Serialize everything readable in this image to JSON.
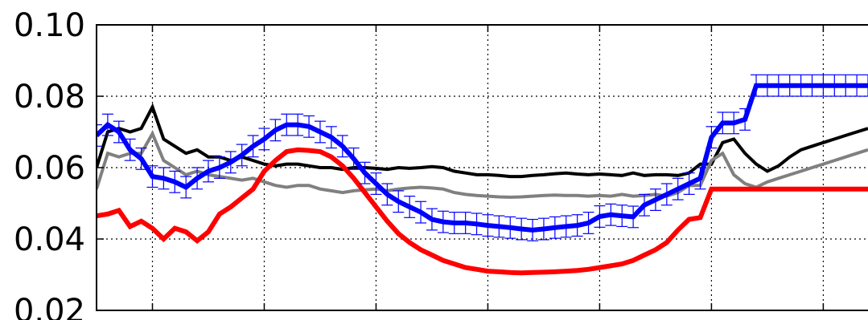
{
  "chart_data": {
    "type": "line",
    "x": [
      0,
      1,
      2,
      3,
      4,
      5,
      6,
      7,
      8,
      9,
      10,
      11,
      12,
      13,
      14,
      15,
      16,
      17,
      18,
      19,
      20,
      21,
      22,
      23,
      24,
      25,
      26,
      27,
      28,
      29,
      30,
      31,
      32,
      33,
      34,
      35,
      36,
      37,
      38,
      39,
      40,
      41,
      42,
      43,
      44,
      45,
      46,
      47,
      48,
      49,
      50,
      51,
      52,
      53,
      54,
      55,
      56,
      57,
      58,
      59,
      60,
      61,
      62,
      63,
      64,
      65,
      66,
      67,
      68,
      69
    ],
    "xlim": [
      0,
      69
    ],
    "ylim": [
      0.02,
      0.1
    ],
    "yticks": [
      0.02,
      0.04,
      0.06,
      0.08,
      0.1
    ],
    "ytick_labels": [
      "0.02",
      "0.04",
      "0.06",
      "0.08",
      "0.10"
    ],
    "xticks": [
      5,
      15,
      25,
      35,
      45,
      55,
      65
    ],
    "grid": true,
    "series": [
      {
        "color": "#000000",
        "values": [
          0.06,
          0.07,
          0.071,
          0.07,
          0.071,
          0.077,
          0.068,
          0.066,
          0.064,
          0.065,
          0.063,
          0.063,
          0.062,
          0.063,
          0.062,
          0.061,
          0.0605,
          0.061,
          0.061,
          0.0605,
          0.06,
          0.06,
          0.0595,
          0.06,
          0.06,
          0.0598,
          0.0595,
          0.06,
          0.0598,
          0.06,
          0.0603,
          0.06,
          0.059,
          0.0585,
          0.058,
          0.058,
          0.0578,
          0.0575,
          0.0575,
          0.0578,
          0.058,
          0.0583,
          0.0585,
          0.0582,
          0.058,
          0.0582,
          0.058,
          0.0578,
          0.0585,
          0.0578,
          0.058,
          0.058,
          0.0578,
          0.0585,
          0.061,
          0.061,
          0.067,
          0.068,
          0.064,
          0.061,
          0.059,
          0.0605,
          0.063,
          0.065,
          0.066,
          0.067,
          0.068,
          0.069,
          0.07,
          0.071
        ]
      },
      {
        "color": "#808080",
        "values": [
          0.054,
          0.064,
          0.063,
          0.064,
          0.064,
          0.0695,
          0.062,
          0.06,
          0.058,
          0.059,
          0.058,
          0.0575,
          0.057,
          0.0565,
          0.057,
          0.056,
          0.055,
          0.0545,
          0.055,
          0.055,
          0.054,
          0.0535,
          0.053,
          0.0535,
          0.0538,
          0.054,
          0.0535,
          0.054,
          0.0543,
          0.0545,
          0.0543,
          0.054,
          0.053,
          0.0525,
          0.0522,
          0.052,
          0.0518,
          0.0517,
          0.0518,
          0.052,
          0.0522,
          0.0523,
          0.0522,
          0.0522,
          0.052,
          0.0522,
          0.052,
          0.0525,
          0.052,
          0.0522,
          0.0525,
          0.052,
          0.053,
          0.055,
          0.055,
          0.062,
          0.064,
          0.058,
          0.0555,
          0.0545,
          0.056,
          0.057,
          0.058,
          0.059,
          0.06,
          0.061,
          0.062,
          0.063,
          0.064,
          0.065
        ]
      },
      {
        "color": "#ff0000",
        "values": [
          0.0465,
          0.047,
          0.048,
          0.0435,
          0.045,
          0.043,
          0.04,
          0.043,
          0.042,
          0.0395,
          0.042,
          0.047,
          0.049,
          0.0515,
          0.054,
          0.059,
          0.062,
          0.0645,
          0.065,
          0.0648,
          0.0645,
          0.063,
          0.0605,
          0.057,
          0.053,
          0.049,
          0.045,
          0.0415,
          0.039,
          0.037,
          0.0355,
          0.034,
          0.033,
          0.032,
          0.0315,
          0.031,
          0.0308,
          0.0306,
          0.0305,
          0.0306,
          0.0307,
          0.0308,
          0.031,
          0.0312,
          0.0315,
          0.032,
          0.0325,
          0.033,
          0.034,
          0.0355,
          0.037,
          0.039,
          0.0425,
          0.0455,
          0.046,
          0.054,
          0.054,
          0.054,
          0.054,
          0.054,
          0.054,
          0.054,
          0.054,
          0.054,
          0.054,
          0.054,
          0.054,
          0.054,
          0.054,
          0.054
        ]
      },
      {
        "color": "#0000ff",
        "values": [
          0.069,
          0.072,
          0.07,
          0.065,
          0.0625,
          0.0575,
          0.057,
          0.056,
          0.0545,
          0.057,
          0.059,
          0.06,
          0.0615,
          0.0635,
          0.066,
          0.068,
          0.0705,
          0.072,
          0.072,
          0.0715,
          0.07,
          0.0685,
          0.066,
          0.0625,
          0.0585,
          0.0555,
          0.0525,
          0.0505,
          0.049,
          0.0475,
          0.0455,
          0.0448,
          0.0445,
          0.0445,
          0.0442,
          0.0438,
          0.0435,
          0.0432,
          0.0428,
          0.0425,
          0.0428,
          0.0432,
          0.0435,
          0.0438,
          0.0445,
          0.0463,
          0.0468,
          0.0465,
          0.0462,
          0.0495,
          0.051,
          0.0525,
          0.054,
          0.0555,
          0.057,
          0.0685,
          0.0725,
          0.0725,
          0.0735,
          0.083,
          0.083,
          0.083,
          0.083,
          0.083,
          0.083,
          0.083,
          0.083,
          0.083,
          0.083,
          0.083
        ],
        "error": 0.003
      }
    ]
  }
}
